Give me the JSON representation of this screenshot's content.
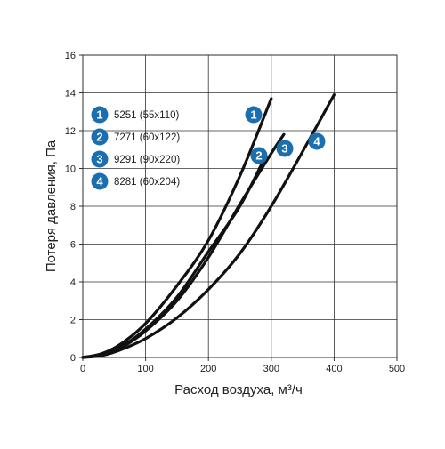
{
  "chart_data": {
    "type": "line",
    "title": "",
    "xlabel": "Расход воздуха, м³/ч",
    "ylabel": "Потеря давления, Па",
    "xlim": [
      0,
      500
    ],
    "ylim": [
      0,
      16
    ],
    "x_ticks": [
      0,
      100,
      200,
      300,
      400,
      500
    ],
    "y_ticks": [
      0,
      2,
      4,
      6,
      8,
      10,
      12,
      14,
      16
    ],
    "grid": true,
    "legend_position": "top-left",
    "series": [
      {
        "marker": "1",
        "name": "5251 (55x110)",
        "points": [
          [
            0,
            0
          ],
          [
            30,
            0.2
          ],
          [
            60,
            0.7
          ],
          [
            100,
            1.8
          ],
          [
            150,
            3.8
          ],
          [
            200,
            6.2
          ],
          [
            250,
            9.6
          ],
          [
            300,
            13.7
          ]
        ]
      },
      {
        "marker": "2",
        "name": "7271 (60x122)",
        "points": [
          [
            0,
            0
          ],
          [
            30,
            0.15
          ],
          [
            60,
            0.55
          ],
          [
            100,
            1.5
          ],
          [
            150,
            3.2
          ],
          [
            200,
            5.6
          ],
          [
            250,
            8.0
          ],
          [
            290,
            10.6
          ]
        ]
      },
      {
        "marker": "3",
        "name": "9291 (90x220)",
        "points": [
          [
            0,
            0
          ],
          [
            30,
            0.15
          ],
          [
            60,
            0.5
          ],
          [
            100,
            1.4
          ],
          [
            150,
            3.0
          ],
          [
            200,
            5.3
          ],
          [
            250,
            8.1
          ],
          [
            300,
            10.8
          ],
          [
            320,
            11.8
          ]
        ]
      },
      {
        "marker": "4",
        "name": "8281 (60x204)",
        "points": [
          [
            0,
            0
          ],
          [
            30,
            0.1
          ],
          [
            60,
            0.4
          ],
          [
            100,
            1.0
          ],
          [
            150,
            2.1
          ],
          [
            200,
            3.6
          ],
          [
            250,
            5.5
          ],
          [
            300,
            8.0
          ],
          [
            350,
            10.9
          ],
          [
            400,
            13.9
          ]
        ]
      }
    ],
    "badge_color": "#1a6fb0",
    "line_color": "#111111"
  }
}
